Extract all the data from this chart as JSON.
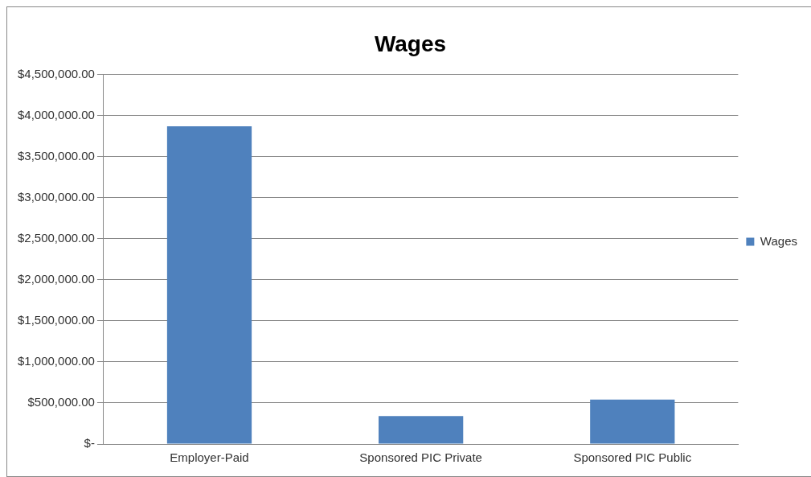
{
  "chart_data": {
    "type": "bar",
    "title": "Wages",
    "categories": [
      "Employer-Paid",
      "Sponsored PIC Private",
      "Sponsored PIC Public"
    ],
    "series": [
      {
        "name": "Wages",
        "color": "#4f81bd",
        "values": [
          3870000,
          340000,
          540000
        ]
      }
    ],
    "ylim": [
      0,
      4500000
    ],
    "yticks": [
      {
        "value": 0,
        "label": "$-"
      },
      {
        "value": 500000,
        "label": "$500,000.00"
      },
      {
        "value": 1000000,
        "label": "$1,000,000.00"
      },
      {
        "value": 1500000,
        "label": "$1,500,000.00"
      },
      {
        "value": 2000000,
        "label": "$2,000,000.00"
      },
      {
        "value": 2500000,
        "label": "$2,500,000.00"
      },
      {
        "value": 3000000,
        "label": "$3,000,000.00"
      },
      {
        "value": 3500000,
        "label": "$3,500,000.00"
      },
      {
        "value": 4000000,
        "label": "$4,000,000.00"
      },
      {
        "value": 4500000,
        "label": "$4,500,000.00"
      }
    ],
    "grid": "y",
    "legend": "right"
  }
}
